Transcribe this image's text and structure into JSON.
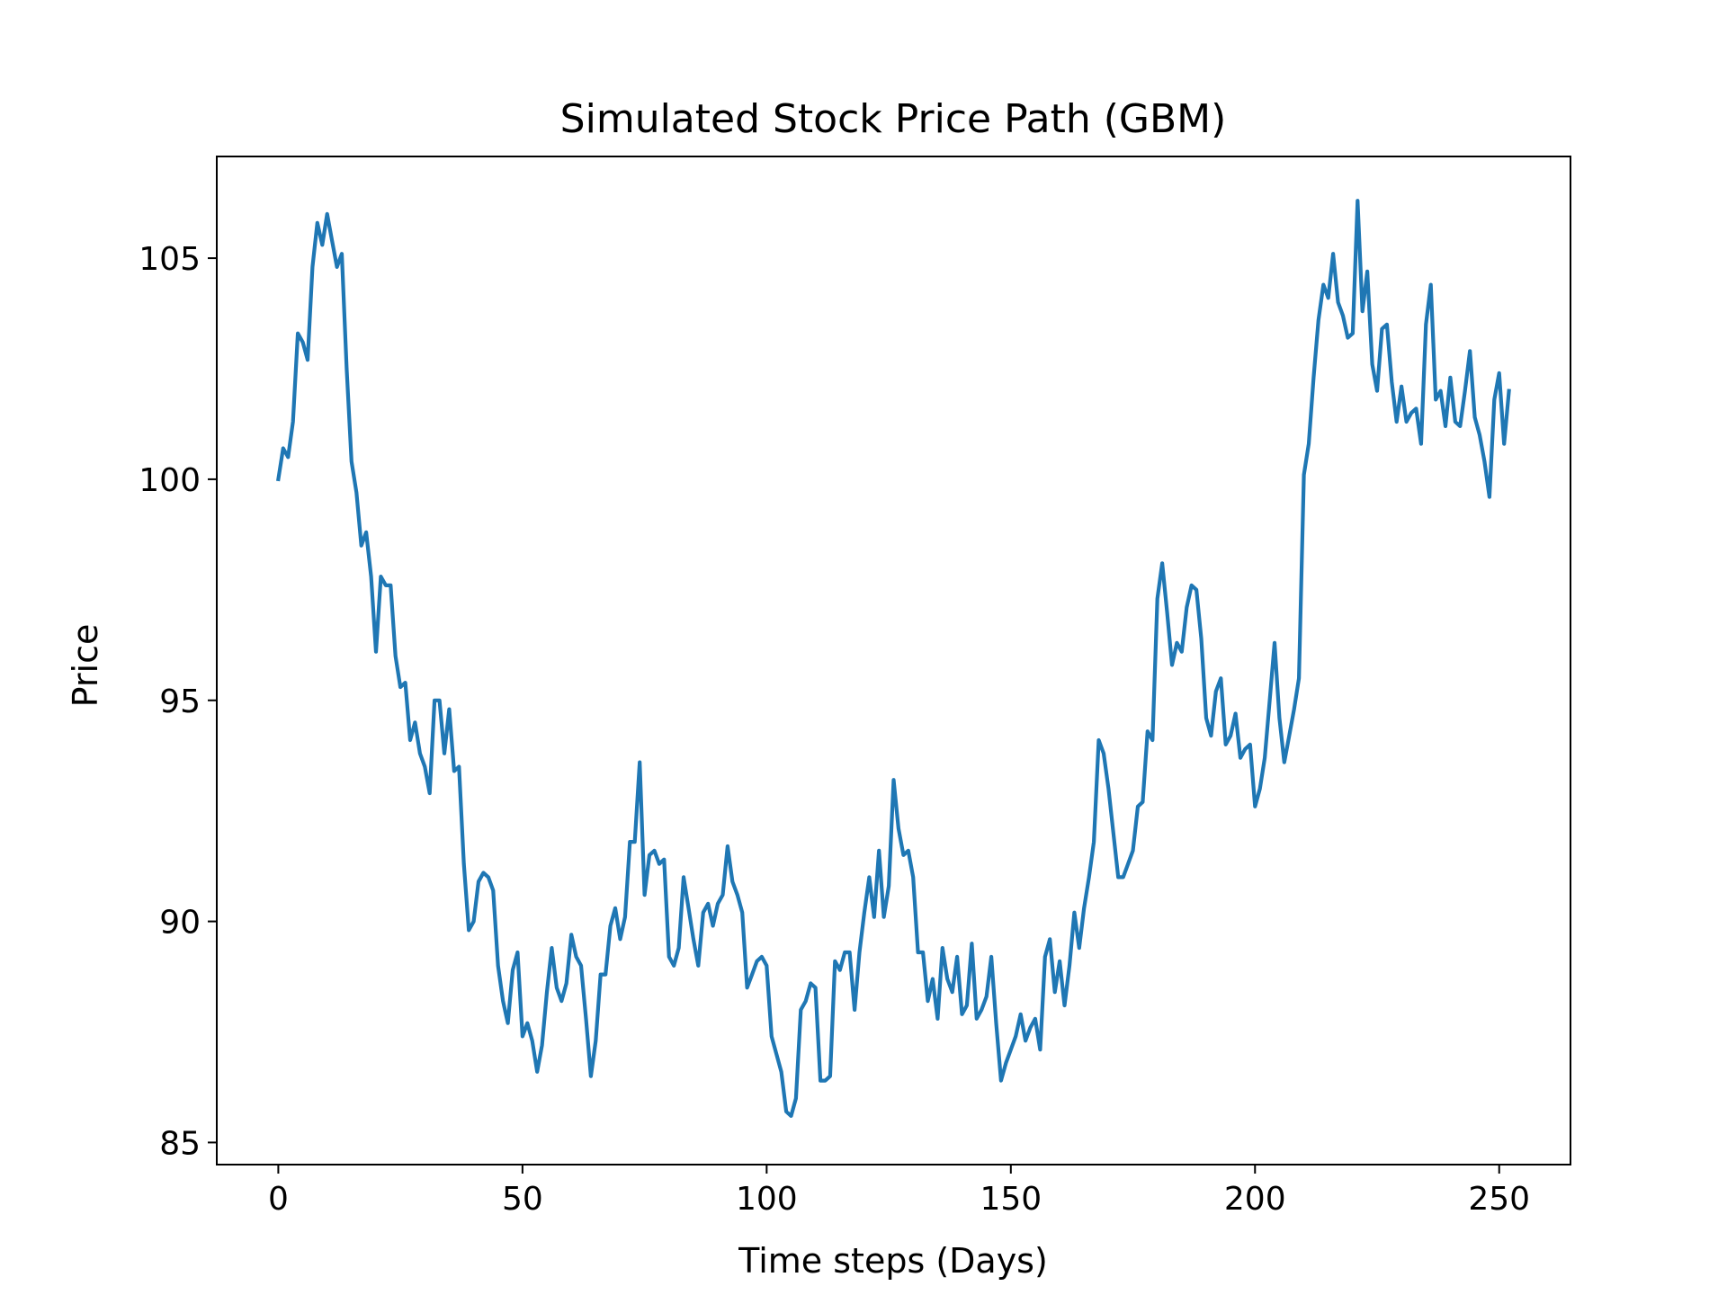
{
  "chart_data": {
    "type": "line",
    "title": "Simulated Stock Price Path (GBM)",
    "xlabel": "Time steps (Days)",
    "ylabel": "Price",
    "xlim": [
      -12.6,
      264.6
    ],
    "ylim": [
      84.5,
      107.3
    ],
    "xticks": [
      0,
      50,
      100,
      150,
      200,
      250
    ],
    "yticks": [
      85,
      90,
      95,
      100,
      105
    ],
    "xtick_labels": [
      "0",
      "50",
      "100",
      "150",
      "200",
      "250"
    ],
    "ytick_labels": [
      "85",
      "90",
      "95",
      "100",
      "105"
    ],
    "grid": false,
    "line_color": "#1f77b4",
    "series": [
      {
        "x": [
          0,
          1,
          2,
          3,
          4,
          5,
          6,
          7,
          8,
          9,
          10,
          11,
          12,
          13,
          14,
          15,
          16,
          17,
          18,
          19,
          20,
          21,
          22,
          23,
          24,
          25,
          26,
          27,
          28,
          29,
          30,
          31,
          32,
          33,
          34,
          35,
          36,
          37,
          38,
          39,
          40,
          41,
          42,
          43,
          44,
          45,
          46,
          47,
          48,
          49,
          50,
          51,
          52,
          53,
          54,
          55,
          56,
          57,
          58,
          59,
          60,
          61,
          62,
          63,
          64,
          65,
          66,
          67,
          68,
          69,
          70,
          71,
          72,
          73,
          74,
          75,
          76,
          77,
          78,
          79,
          80,
          81,
          82,
          83,
          84,
          85,
          86,
          87,
          88,
          89,
          90,
          91,
          92,
          93,
          94,
          95,
          96,
          97,
          98,
          99,
          100,
          101,
          102,
          103,
          104,
          105,
          106,
          107,
          108,
          109,
          110,
          111,
          112,
          113,
          114,
          115,
          116,
          117,
          118,
          119,
          120,
          121,
          122,
          123,
          124,
          125,
          126,
          127,
          128,
          129,
          130,
          131,
          132,
          133,
          134,
          135,
          136,
          137,
          138,
          139,
          140,
          141,
          142,
          143,
          144,
          145,
          146,
          147,
          148,
          149,
          150,
          151,
          152,
          153,
          154,
          155,
          156,
          157,
          158,
          159,
          160,
          161,
          162,
          163,
          164,
          165,
          166,
          167,
          168,
          169,
          170,
          171,
          172,
          173,
          174,
          175,
          176,
          177,
          178,
          179,
          180,
          181,
          182,
          183,
          184,
          185,
          186,
          187,
          188,
          189,
          190,
          191,
          192,
          193,
          194,
          195,
          196,
          197,
          198,
          199,
          200,
          201,
          202,
          203,
          204,
          205,
          206,
          207,
          208,
          209,
          210,
          211,
          212,
          213,
          214,
          215,
          216,
          217,
          218,
          219,
          220,
          221,
          222,
          223,
          224,
          225,
          226,
          227,
          228,
          229,
          230,
          231,
          232,
          233,
          234,
          235,
          236,
          237,
          238,
          239,
          240,
          241,
          242,
          243,
          244,
          245,
          246,
          247,
          248,
          249,
          250,
          251,
          252
        ],
        "y": [
          100.0,
          100.7,
          100.5,
          101.3,
          103.3,
          103.1,
          102.7,
          104.8,
          105.8,
          105.3,
          106.0,
          105.4,
          104.8,
          105.1,
          102.5,
          100.4,
          99.7,
          98.5,
          98.8,
          97.8,
          96.1,
          97.8,
          97.6,
          97.6,
          96.0,
          95.3,
          95.4,
          94.1,
          94.5,
          93.8,
          93.5,
          92.9,
          95.0,
          95.0,
          93.8,
          94.8,
          93.4,
          93.5,
          91.3,
          89.8,
          90.0,
          90.9,
          91.1,
          91.0,
          90.7,
          89.0,
          88.2,
          87.7,
          88.9,
          89.3,
          87.4,
          87.7,
          87.3,
          86.6,
          87.2,
          88.4,
          89.4,
          88.5,
          88.2,
          88.6,
          89.7,
          89.2,
          89.0,
          87.8,
          86.5,
          87.3,
          88.8,
          88.8,
          89.9,
          90.3,
          89.6,
          90.1,
          91.8,
          91.8,
          93.6,
          90.6,
          91.5,
          91.6,
          91.3,
          91.4,
          89.2,
          89.0,
          89.4,
          91.0,
          90.3,
          89.6,
          89.0,
          90.2,
          90.4,
          89.9,
          90.4,
          90.6,
          91.7,
          90.9,
          90.6,
          90.2,
          88.5,
          88.8,
          89.1,
          89.2,
          89.0,
          87.4,
          87.0,
          86.6,
          85.7,
          85.6,
          86.0,
          88.0,
          88.2,
          88.6,
          88.5,
          86.4,
          86.4,
          86.5,
          89.1,
          88.9,
          89.3,
          89.3,
          88.0,
          89.3,
          90.2,
          91.0,
          90.1,
          91.6,
          90.1,
          90.8,
          93.2,
          92.1,
          91.5,
          91.6,
          91.0,
          89.3,
          89.3,
          88.2,
          88.7,
          87.8,
          89.4,
          88.7,
          88.4,
          89.2,
          87.9,
          88.1,
          89.5,
          87.8,
          88.0,
          88.3,
          89.2,
          87.7,
          86.4,
          86.8,
          87.1,
          87.4,
          87.9,
          87.3,
          87.6,
          87.8,
          87.1,
          89.2,
          89.6,
          88.4,
          89.1,
          88.1,
          89.0,
          90.2,
          89.4,
          90.3,
          91.0,
          91.8,
          94.1,
          93.8,
          93.0,
          92.0,
          91.0,
          91.0,
          91.3,
          91.6,
          92.6,
          92.7,
          94.3,
          94.1,
          97.3,
          98.1,
          97.0,
          95.8,
          96.3,
          96.1,
          97.1,
          97.6,
          97.5,
          96.4,
          94.6,
          94.2,
          95.2,
          95.5,
          94.0,
          94.2,
          94.7,
          93.7,
          93.9,
          94.0,
          92.6,
          93.0,
          93.7,
          95.0,
          96.3,
          94.6,
          93.6,
          94.2,
          94.8,
          95.5,
          100.1,
          100.8,
          102.3,
          103.6,
          104.4,
          104.1,
          105.1,
          104.0,
          103.7,
          103.2,
          103.3,
          106.3,
          103.8,
          104.7,
          102.6,
          102.0,
          103.4,
          103.5,
          102.2,
          101.3,
          102.1,
          101.3,
          101.5,
          101.6,
          100.8,
          103.5,
          104.4,
          101.8,
          102.0,
          101.2,
          102.3,
          101.3,
          101.2,
          102.0,
          102.9,
          101.4,
          101.0,
          100.4,
          99.6,
          101.8,
          102.4,
          100.8,
          102.0
        ]
      }
    ]
  }
}
